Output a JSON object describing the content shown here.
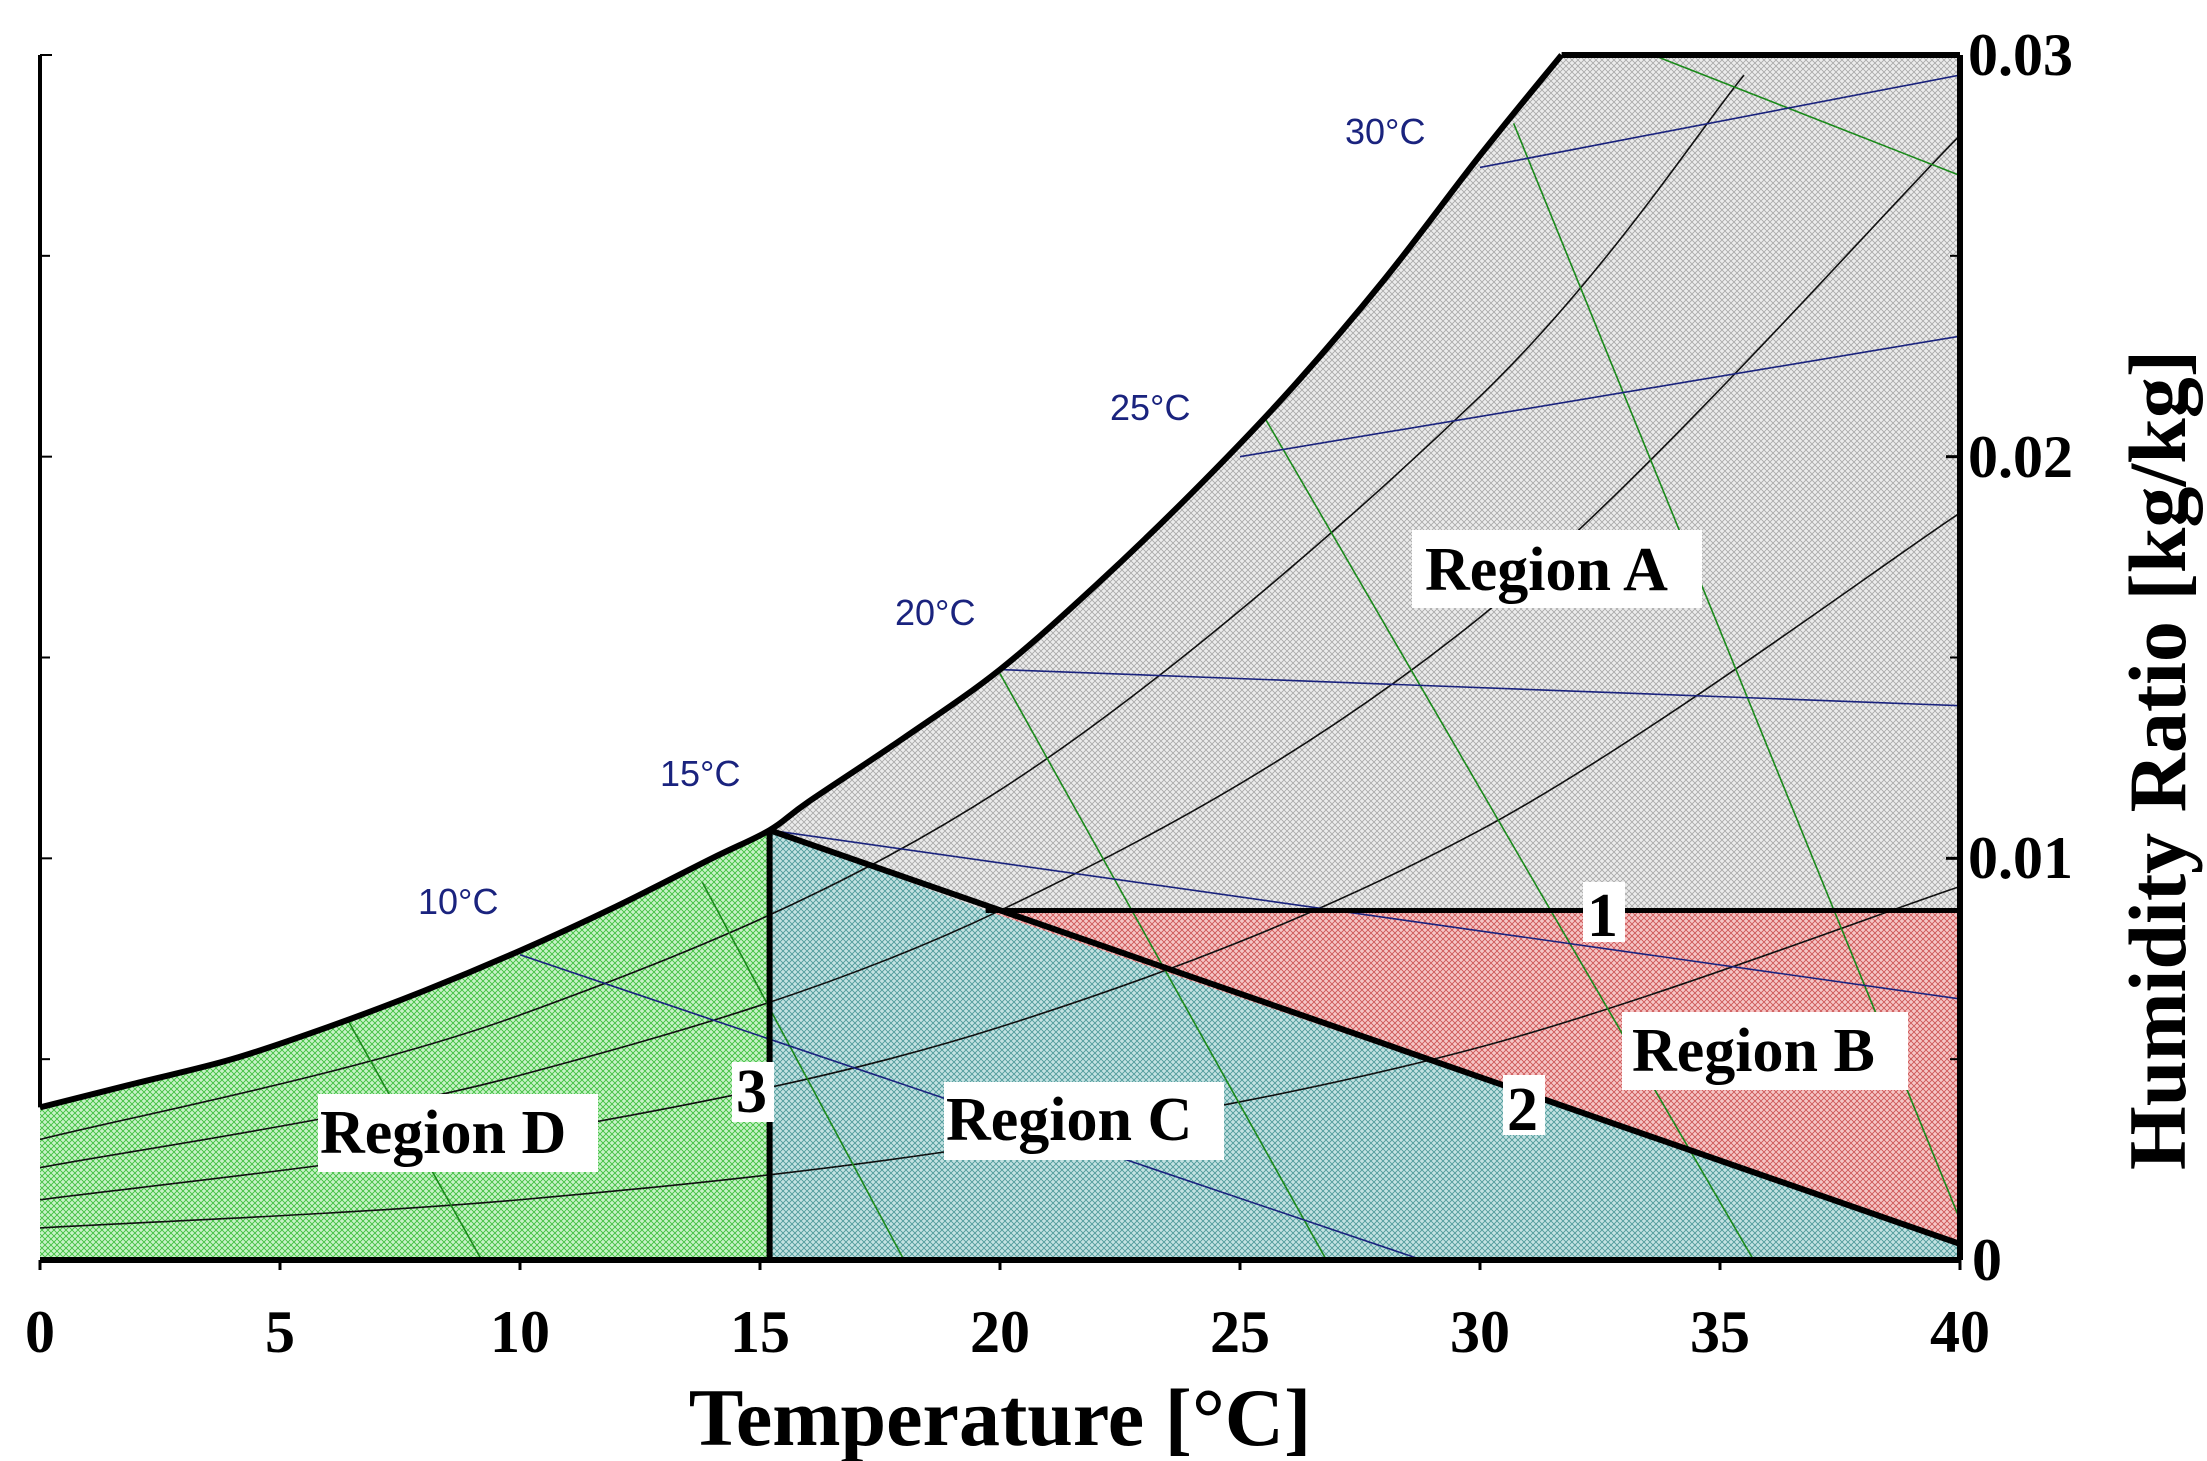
{
  "chart_data": {
    "type": "psychrometric",
    "title": "",
    "xlabel": "Temperature [°C]",
    "ylabel": "Humidity Ratio [kg/kg]",
    "xlim": [
      0,
      40
    ],
    "ylim": [
      0,
      0.03
    ],
    "x_ticks": [
      0,
      5,
      10,
      15,
      20,
      25,
      30,
      35,
      40
    ],
    "x_tick_labels": [
      "0",
      "5",
      "10",
      "15",
      "20",
      "25",
      "30",
      "35",
      "40"
    ],
    "y_ticks": [
      0,
      0.01,
      0.02,
      0.03
    ],
    "y_tick_labels": [
      "0",
      "0.01",
      "0.02",
      "0.03"
    ],
    "y_minor_ticks": [
      0.005,
      0.015,
      0.025
    ],
    "saturation_curve": {
      "x": [
        0,
        2,
        4,
        6,
        8,
        10,
        12,
        14,
        15.2,
        16,
        18,
        20,
        22,
        24,
        26,
        28,
        30,
        31.7
      ],
      "y": [
        0.0038,
        0.0044,
        0.005,
        0.0058,
        0.0067,
        0.0077,
        0.0088,
        0.01,
        0.0107,
        0.0114,
        0.013,
        0.0147,
        0.0168,
        0.0191,
        0.0216,
        0.0244,
        0.0275,
        0.03
      ]
    },
    "relative_humidity_curves": [
      {
        "rh": 0.2,
        "x": [
          0,
          10,
          20,
          30,
          40
        ],
        "y": [
          0.0008,
          0.0015,
          0.0029,
          0.0053,
          0.0093
        ]
      },
      {
        "rh": 0.4,
        "x": [
          0,
          10,
          20,
          30,
          40
        ],
        "y": [
          0.0015,
          0.0031,
          0.0058,
          0.0107,
          0.0186
        ]
      },
      {
        "rh": 0.6,
        "x": [
          0,
          10,
          20,
          30,
          40
        ],
        "y": [
          0.0023,
          0.0046,
          0.0087,
          0.016,
          0.028
        ]
      },
      {
        "rh": 0.8,
        "x": [
          0,
          10,
          20,
          30,
          35.5
        ],
        "y": [
          0.003,
          0.0061,
          0.0117,
          0.0215,
          0.0295
        ]
      }
    ],
    "wet_bulb_lines": [
      {
        "label": "10°C",
        "x": [
          10,
          28.8
        ],
        "y": [
          0.0076,
          0.0
        ]
      },
      {
        "label": "15°C",
        "x": [
          15.2,
          40
        ],
        "y": [
          0.0107,
          0.0065
        ]
      },
      {
        "label": "20°C",
        "x": [
          20,
          40
        ],
        "y": [
          0.0147,
          0.0138
        ]
      },
      {
        "label": "25°C",
        "x": [
          25,
          40
        ],
        "y": [
          0.02,
          0.023
        ]
      },
      {
        "label": "30°C",
        "x": [
          30,
          40
        ],
        "y": [
          0.0272,
          0.0295
        ]
      }
    ],
    "enthalpy_lines": [
      {
        "x": [
          6.4,
          9.2
        ],
        "y": [
          0.006,
          0.0
        ]
      },
      {
        "x": [
          13.8,
          18.0
        ],
        "y": [
          0.0094,
          0.0
        ]
      },
      {
        "x": [
          20.0,
          26.8
        ],
        "y": [
          0.0146,
          0.0
        ]
      },
      {
        "x": [
          25.5,
          35.7
        ],
        "y": [
          0.021,
          0.0
        ]
      },
      {
        "x": [
          30.7,
          40.0
        ],
        "y": [
          0.0283,
          0.001
        ]
      },
      {
        "x": [
          33.6,
          40.0
        ],
        "y": [
          0.03,
          0.027
        ]
      }
    ],
    "regions": [
      {
        "name": "Region A",
        "color": "#d6d6d6"
      },
      {
        "name": "Region B",
        "color": "#ee9a9a"
      },
      {
        "name": "Region C",
        "color": "#9fcfcf"
      },
      {
        "name": "Region D",
        "color": "#9be89b"
      }
    ],
    "points": [
      {
        "label": "1",
        "x": 32.6,
        "y": 0.0087
      },
      {
        "label": "2",
        "x": 31.0,
        "y": 0.0039
      },
      {
        "label": "3",
        "x": 14.9,
        "y": 0.0042
      }
    ],
    "boundaries": {
      "humidity_line": {
        "x": [
          19.7,
          40
        ],
        "y": [
          0.0087,
          0.0087
        ]
      },
      "diagonal_line": {
        "x": [
          15.2,
          40
        ],
        "y": [
          0.0107,
          0.0004
        ]
      },
      "vertical_line": {
        "x": [
          15.2,
          15.2
        ],
        "y": [
          0,
          0.0107
        ]
      }
    },
    "colors": {
      "wet_bulb": "#1a237e",
      "enthalpy": "#1b8a1b",
      "rh": "#111111"
    }
  }
}
